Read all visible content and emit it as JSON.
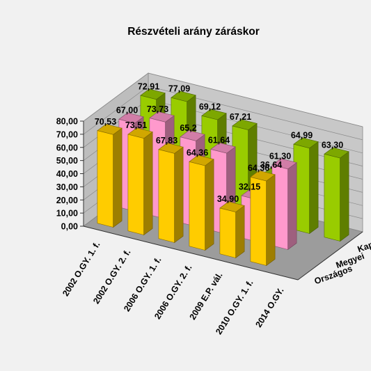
{
  "chart_data": {
    "type": "bar",
    "title": "Részvételi arány záráskor",
    "categories": [
      "2002 O.GY. 1. f.",
      "2002 O.GY. 2. f.",
      "2006 O.GY. 1. f.",
      "2006 O.GY. 2. f.",
      "2009 E.P. vál.",
      "2010 O.GY. 1. f.",
      "2014 O.GY."
    ],
    "series": [
      {
        "name": "Országos",
        "color": "#ffcc00",
        "values": [
          70.53,
          73.51,
          67.83,
          64.36,
          34.9,
          64.36,
          null
        ],
        "labels": [
          "70,53",
          "73,51",
          "67,83",
          "64,36",
          "34,90",
          "64,36",
          ""
        ]
      },
      {
        "name": "Megyei",
        "color": "#ff99cc",
        "values": [
          67.0,
          73.73,
          65.2,
          61.64,
          32.15,
          61.3,
          null
        ],
        "labels": [
          "67,00",
          "73,73",
          "65,2",
          "61,64",
          "32,15",
          "61,30",
          ""
        ]
      },
      {
        "name": "Kaposvári",
        "color": "#99cc00",
        "values": [
          72.91,
          77.09,
          69.12,
          67.21,
          36.64,
          64.99,
          63.3
        ],
        "labels": [
          "72,91",
          "77,09",
          "69,12",
          "67,21",
          "36,64",
          "64,99",
          "63,30"
        ]
      }
    ],
    "y_ticks": [
      "0,00",
      "10,00",
      "20,00",
      "30,00",
      "40,00",
      "50,00",
      "60,00",
      "70,00",
      "80,00"
    ],
    "ylim": [
      0,
      80
    ],
    "grid": true,
    "legend": "depth-axis-right"
  }
}
